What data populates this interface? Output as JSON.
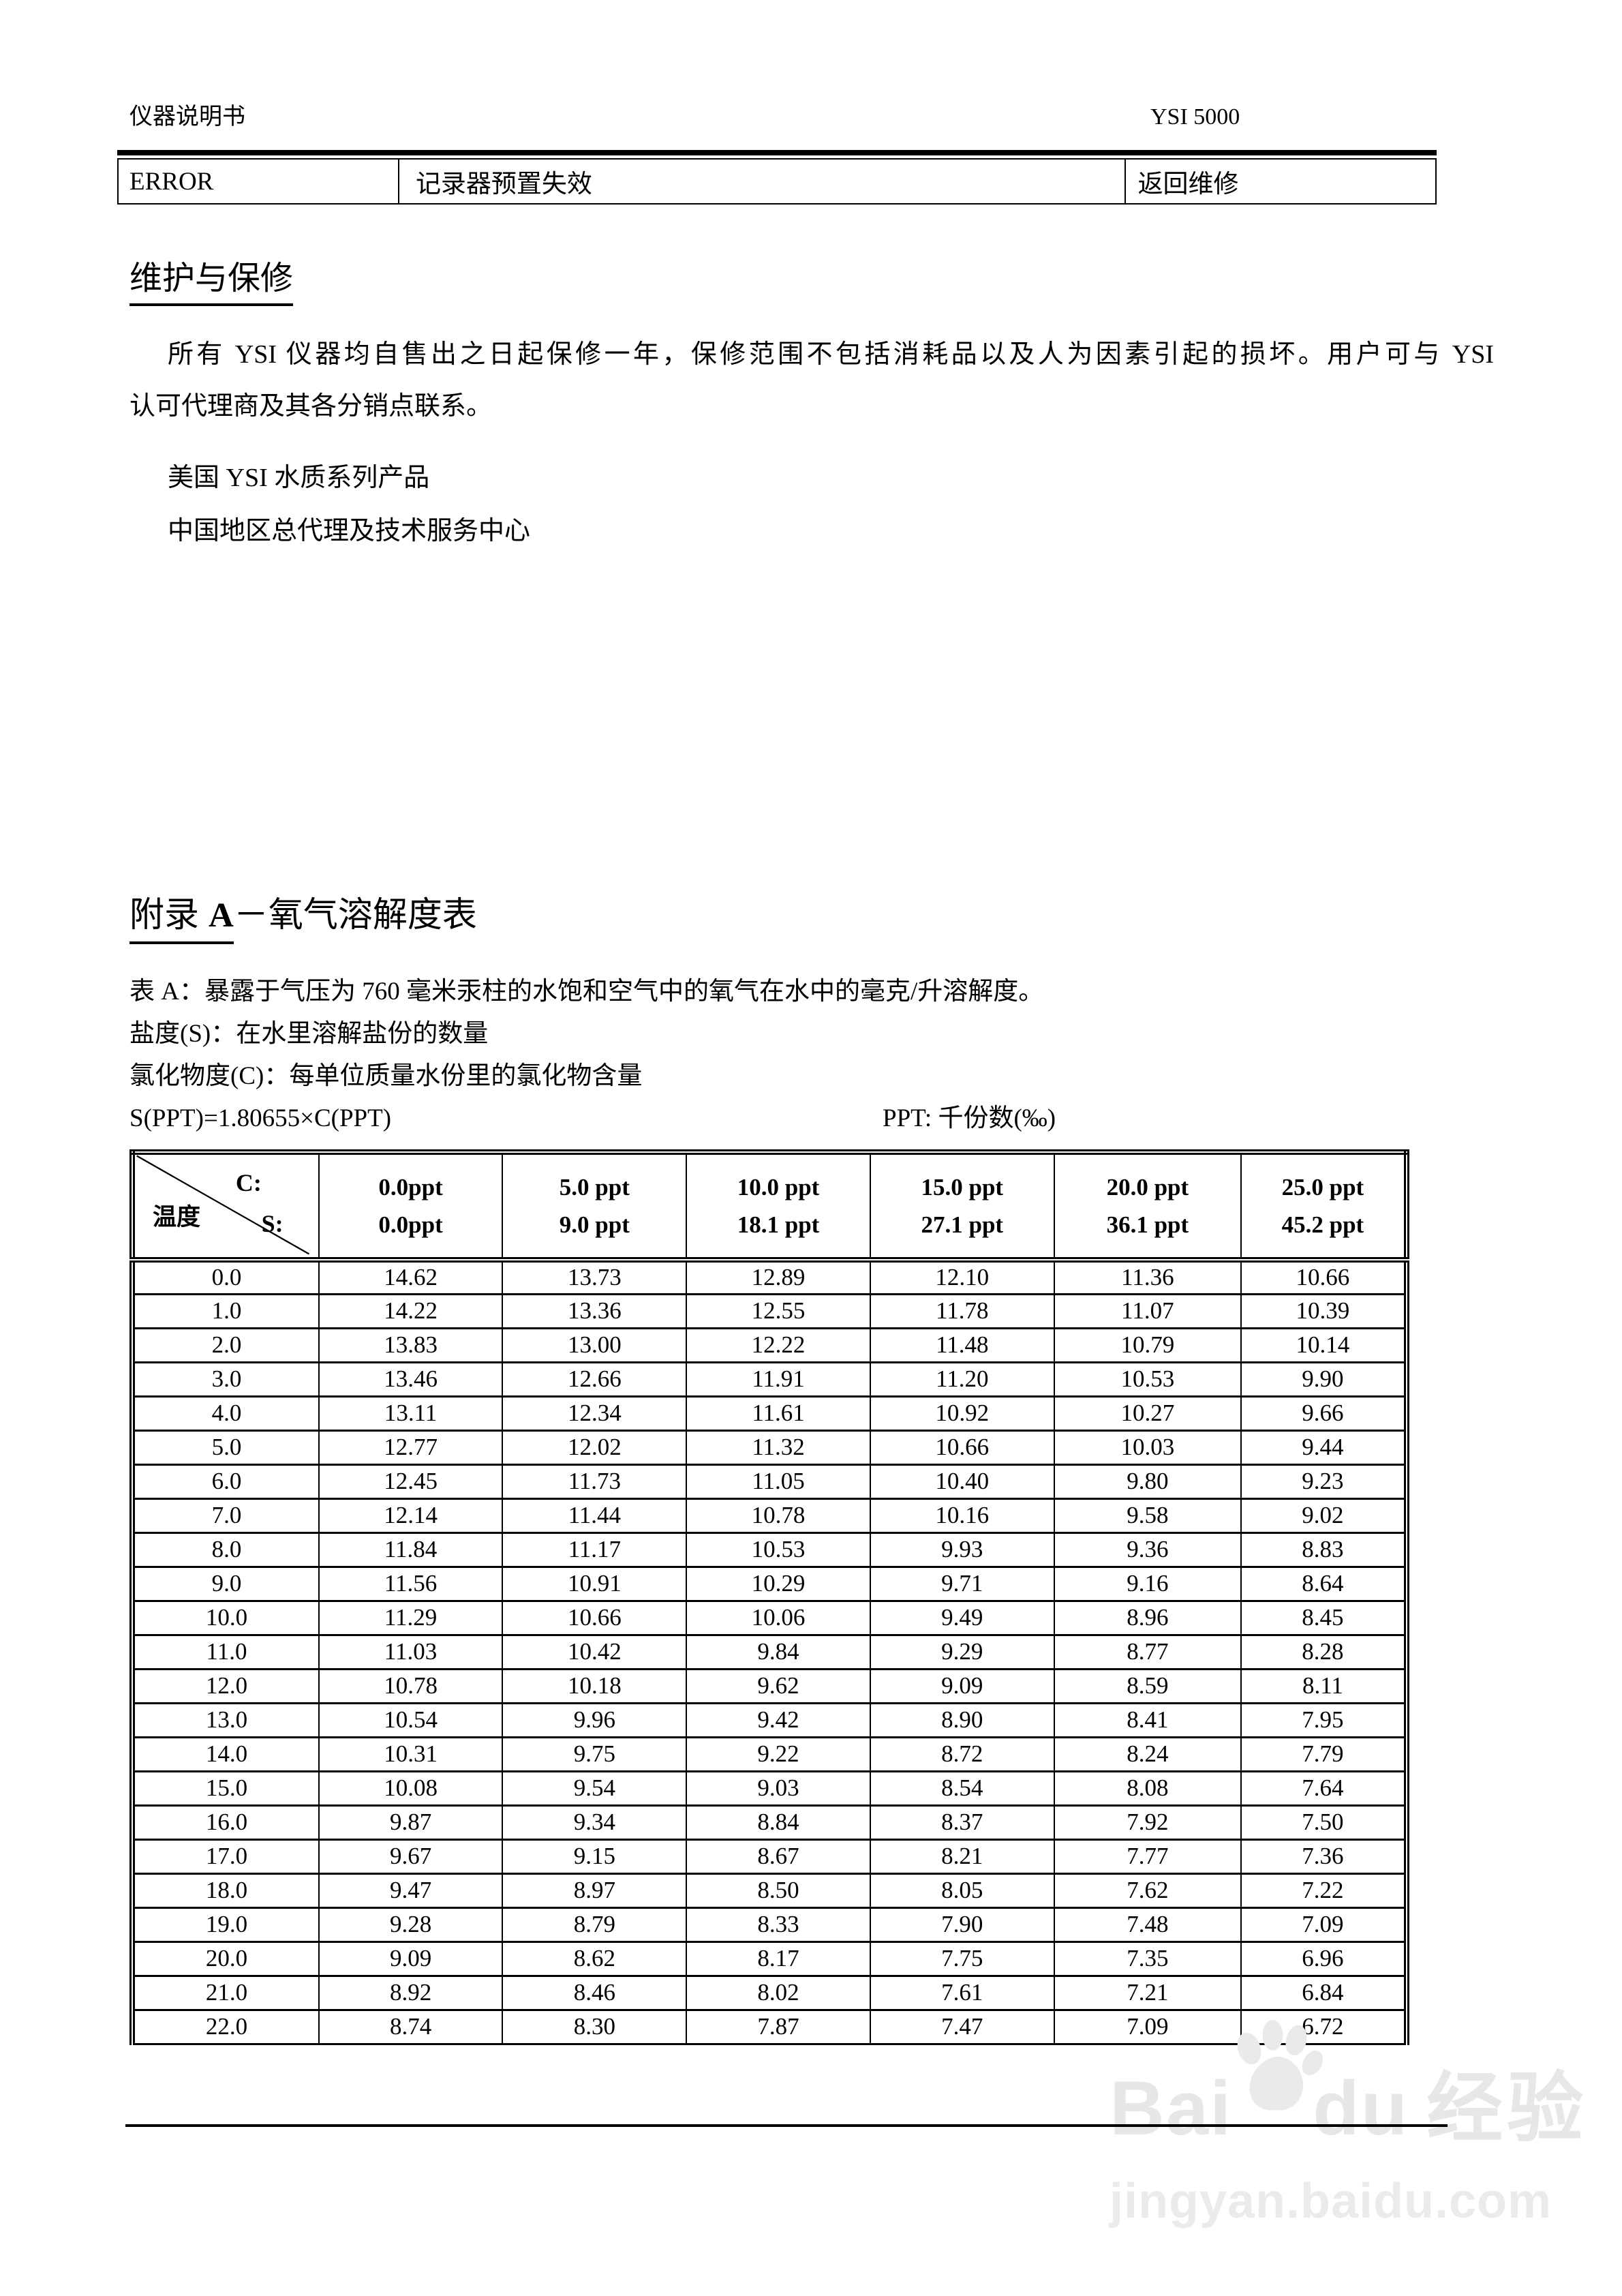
{
  "header": {
    "doc_title": "仪器说明书",
    "model": "YSI 5000"
  },
  "status_table": {
    "error": "ERROR",
    "message": "记录器预置失效",
    "action": "返回维修"
  },
  "maintenance": {
    "title": "维护与保修",
    "para_line1": "所有 YSI 仪器均自售出之日起保修一年，保修范围不包括消耗品以及人为因素引起的损坏。用户可与 YSI",
    "para_line2": "认可代理商及其各分销点联系。",
    "address1": "美国 YSI 水质系列产品",
    "address2": "中国地区总代理及技术服务中心"
  },
  "appendix": {
    "title_prefix": "附录",
    "title_letter": "A",
    "title_rest": "－氧气溶解度表",
    "desc": "表 A：暴露于气压为 760 毫米汞柱的水饱和空气中的氧气在水中的毫克/升溶解度。",
    "salinity_def": "盐度(S)：在水里溶解盐份的数量",
    "chloride_def": "氯化物度(C)：每单位质量水份里的氯化物含量",
    "formula": "S(PPT)=1.80655×C(PPT)",
    "ppt_note": "PPT:  千份数(‰)"
  },
  "solubility_table": {
    "corner": {
      "c_label": "C:",
      "temp_label": "温度",
      "s_label": "S:"
    },
    "col_headers": [
      {
        "c": "0.0ppt",
        "s": "0.0ppt"
      },
      {
        "c": "5.0 ppt",
        "s": "9.0 ppt"
      },
      {
        "c": "10.0 ppt",
        "s": "18.1 ppt"
      },
      {
        "c": "15.0 ppt",
        "s": "27.1 ppt"
      },
      {
        "c": "20.0 ppt",
        "s": "36.1 ppt"
      },
      {
        "c": "25.0 ppt",
        "s": "45.2 ppt"
      }
    ],
    "rows": [
      [
        "0.0",
        "14.62",
        "13.73",
        "12.89",
        "12.10",
        "11.36",
        "10.66"
      ],
      [
        "1.0",
        "14.22",
        "13.36",
        "12.55",
        "11.78",
        "11.07",
        "10.39"
      ],
      [
        "2.0",
        "13.83",
        "13.00",
        "12.22",
        "11.48",
        "10.79",
        "10.14"
      ],
      [
        "3.0",
        "13.46",
        "12.66",
        "11.91",
        "11.20",
        "10.53",
        "9.90"
      ],
      [
        "4.0",
        "13.11",
        "12.34",
        "11.61",
        "10.92",
        "10.27",
        "9.66"
      ],
      [
        "5.0",
        "12.77",
        "12.02",
        "11.32",
        "10.66",
        "10.03",
        "9.44"
      ],
      [
        "6.0",
        "12.45",
        "11.73",
        "11.05",
        "10.40",
        "9.80",
        "9.23"
      ],
      [
        "7.0",
        "12.14",
        "11.44",
        "10.78",
        "10.16",
        "9.58",
        "9.02"
      ],
      [
        "8.0",
        "11.84",
        "11.17",
        "10.53",
        "9.93",
        "9.36",
        "8.83"
      ],
      [
        "9.0",
        "11.56",
        "10.91",
        "10.29",
        "9.71",
        "9.16",
        "8.64"
      ],
      [
        "10.0",
        "11.29",
        "10.66",
        "10.06",
        "9.49",
        "8.96",
        "8.45"
      ],
      [
        "11.0",
        "11.03",
        "10.42",
        "9.84",
        "9.29",
        "8.77",
        "8.28"
      ],
      [
        "12.0",
        "10.78",
        "10.18",
        "9.62",
        "9.09",
        "8.59",
        "8.11"
      ],
      [
        "13.0",
        "10.54",
        "9.96",
        "9.42",
        "8.90",
        "8.41",
        "7.95"
      ],
      [
        "14.0",
        "10.31",
        "9.75",
        "9.22",
        "8.72",
        "8.24",
        "7.79"
      ],
      [
        "15.0",
        "10.08",
        "9.54",
        "9.03",
        "8.54",
        "8.08",
        "7.64"
      ],
      [
        "16.0",
        "9.87",
        "9.34",
        "8.84",
        "8.37",
        "7.92",
        "7.50"
      ],
      [
        "17.0",
        "9.67",
        "9.15",
        "8.67",
        "8.21",
        "7.77",
        "7.36"
      ],
      [
        "18.0",
        "9.47",
        "8.97",
        "8.50",
        "8.05",
        "7.62",
        "7.22"
      ],
      [
        "19.0",
        "9.28",
        "8.79",
        "8.33",
        "7.90",
        "7.48",
        "7.09"
      ],
      [
        "20.0",
        "9.09",
        "8.62",
        "8.17",
        "7.75",
        "7.35",
        "6.96"
      ],
      [
        "21.0",
        "8.92",
        "8.46",
        "8.02",
        "7.61",
        "7.21",
        "6.84"
      ],
      [
        "22.0",
        "8.74",
        "8.30",
        "7.87",
        "7.47",
        "7.09",
        "6.72"
      ]
    ]
  },
  "watermark": {
    "brand_part1": "Bai",
    "brand_part2": "du",
    "brand_cn": "经验",
    "url": "jingyan.baidu.com"
  }
}
